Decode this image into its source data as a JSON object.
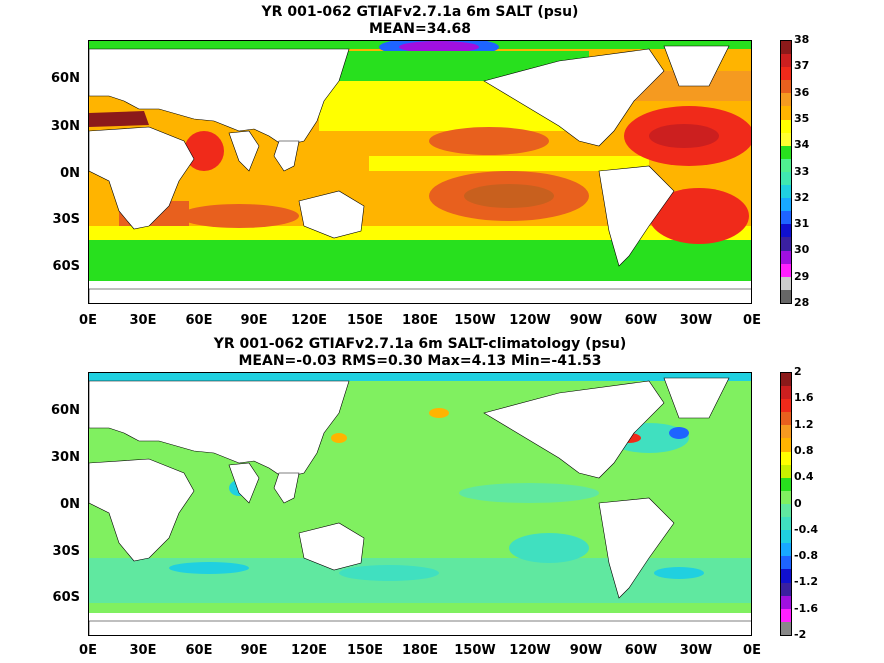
{
  "panels": [
    {
      "title_line1": "YR 001-062 GTIAFv2.7.1a 6m SALT (psu)",
      "title_line2": "MEAN=34.68",
      "lat_labels": [
        "60N",
        "30N",
        "0N",
        "30S",
        "60S"
      ],
      "lon_labels": [
        "0E",
        "30E",
        "60E",
        "90E",
        "120E",
        "150E",
        "180E",
        "150W",
        "120W",
        "90W",
        "60W",
        "30W",
        "0E"
      ],
      "colorbar_ticks": [
        "38",
        "37",
        "36",
        "35",
        "34",
        "33",
        "32",
        "31",
        "30",
        "29",
        "28"
      ],
      "colorbar_colors": [
        "#8b1a1a",
        "#cc1f1f",
        "#f02a1a",
        "#e8601e",
        "#f59a20",
        "#ffb400",
        "#ffff00",
        "#ffff30",
        "#28e01e",
        "#50f090",
        "#40e8b0",
        "#20d0e0",
        "#18a8ff",
        "#1e64ff",
        "#1010d0",
        "#3a20a0",
        "#a010e0",
        "#ff20ff",
        "#cccccc",
        "#666666"
      ]
    },
    {
      "title_line1": "YR 001-062 GTIAFv2.7.1a 6m SALT-climatology (psu)",
      "title_line2": "MEAN=-0.03   RMS=0.30   Max=4.13   Min=-41.53",
      "lat_labels": [
        "60N",
        "30N",
        "0N",
        "30S",
        "60S"
      ],
      "lon_labels": [
        "0E",
        "30E",
        "60E",
        "90E",
        "120E",
        "150E",
        "180E",
        "150W",
        "120W",
        "90W",
        "60W",
        "30W",
        "0E"
      ],
      "colorbar_ticks": [
        "2",
        "1.6",
        "1.2",
        "0.8",
        "0.4",
        "0",
        "-0.4",
        "-0.8",
        "-1.2",
        "-1.6",
        "-2"
      ],
      "colorbar_colors": [
        "#8b1a1a",
        "#cc1f1f",
        "#f02a1a",
        "#e8601e",
        "#f59a20",
        "#ffb400",
        "#ffff00",
        "#c8f000",
        "#28e01e",
        "#80f060",
        "#60e8a0",
        "#40e0c0",
        "#20d0e0",
        "#18a8ff",
        "#1e64ff",
        "#1010d0",
        "#3a20a0",
        "#a010e0",
        "#ff20ff",
        "#888888"
      ]
    }
  ]
}
